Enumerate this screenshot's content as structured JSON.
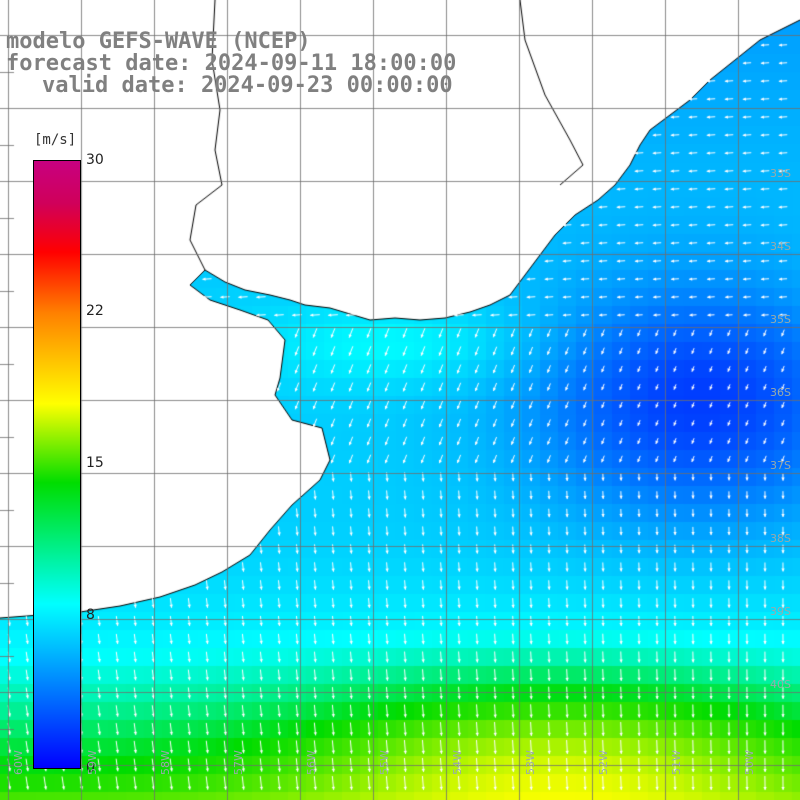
{
  "titles": {
    "line1": "modelo GEFS-WAVE (NCEP)",
    "line2": "forecast date: 2024-09-11 18:00:00",
    "line3": "valid date: 2024-09-23 00:00:00"
  },
  "colorbar": {
    "unit": "[m/s]",
    "ticks": [
      {
        "label": "30",
        "value": 30
      },
      {
        "label": "22",
        "value": 22
      },
      {
        "label": "15",
        "value": 15
      },
      {
        "label": "8",
        "value": 8
      },
      {
        "label": "0",
        "value": 0
      }
    ],
    "colors": [
      "#0000ff",
      "#00bfff",
      "#00ffff",
      "#00dd00",
      "#ffff00",
      "#ff8000",
      "#ff0000",
      "#c80080"
    ]
  },
  "map": {
    "variable": "wind speed and direction",
    "land_color": "#ffffff",
    "grid_color": "#808080",
    "coastline_color": "#000000",
    "lat_labels": [
      "33S",
      "34S",
      "35S",
      "36S",
      "37S",
      "38S",
      "39S",
      "40S"
    ],
    "lon_labels": [
      "60W",
      "59W",
      "58W",
      "57W",
      "56W",
      "55W",
      "54W",
      "53W",
      "52W",
      "51W",
      "50W"
    ]
  }
}
